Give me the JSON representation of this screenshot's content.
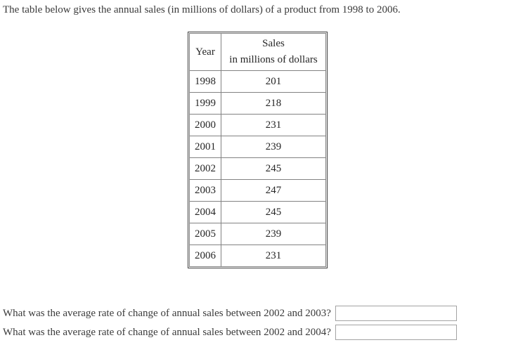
{
  "intro": "The table below gives the annual sales (in millions of dollars) of a product from 1998 to 2006.",
  "table": {
    "headers": {
      "year": "Year",
      "sales_line1": "Sales",
      "sales_line2": "in millions of dollars"
    },
    "rows": [
      {
        "year": "1998",
        "sales": "201"
      },
      {
        "year": "1999",
        "sales": "218"
      },
      {
        "year": "2000",
        "sales": "231"
      },
      {
        "year": "2001",
        "sales": "239"
      },
      {
        "year": "2002",
        "sales": "245"
      },
      {
        "year": "2003",
        "sales": "247"
      },
      {
        "year": "2004",
        "sales": "245"
      },
      {
        "year": "2005",
        "sales": "239"
      },
      {
        "year": "2006",
        "sales": "231"
      }
    ]
  },
  "questions": [
    {
      "label": "What was the average rate of change of annual sales between 2002 and 2003?",
      "answer_value": ""
    },
    {
      "label": "What was the average rate of change of annual sales between 2002 and 2004?",
      "answer_value": ""
    }
  ],
  "colors": {
    "table_outer_border": "#3f3f3f",
    "table_inner_border": "#828282",
    "input_border": "#a3a3a3",
    "text": "#3a3a3a"
  }
}
